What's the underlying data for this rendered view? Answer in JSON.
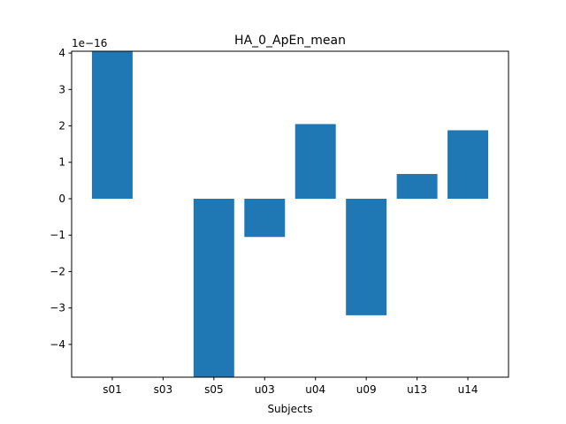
{
  "chart_data": {
    "type": "bar",
    "title": "HA_0_ApEn_mean",
    "xlabel": "Subjects",
    "ylabel": "",
    "scale_label": "1e−16",
    "categories": [
      "s01",
      "s03",
      "s05",
      "u03",
      "u04",
      "u09",
      "u13",
      "u14"
    ],
    "values": [
      4.1,
      0.0,
      -4.9,
      -1.05,
      2.05,
      -3.2,
      0.68,
      1.88
    ],
    "ylim": [
      -4.9,
      4.05
    ],
    "yticks": [
      4,
      3,
      2,
      1,
      0,
      -1,
      -2,
      -3,
      -4
    ],
    "ytick_labels": [
      "4",
      "3",
      "2",
      "1",
      "0",
      "−1",
      "−2",
      "−3",
      "−4"
    ],
    "bar_color": "#1f77b4",
    "grid": false,
    "legend": "none"
  }
}
